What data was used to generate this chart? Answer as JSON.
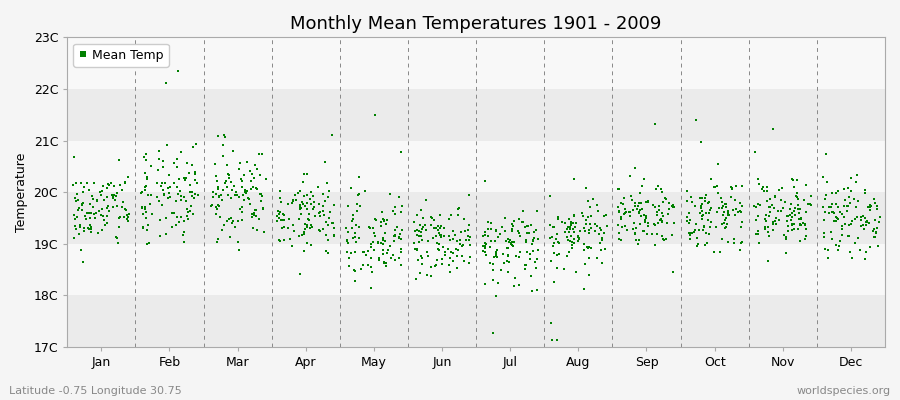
{
  "title": "Monthly Mean Temperatures 1901 - 2009",
  "ylabel": "Temperature",
  "subtitle": "Latitude -0.75 Longitude 30.75",
  "watermark": "worldspecies.org",
  "months": [
    "Jan",
    "Feb",
    "Mar",
    "Apr",
    "May",
    "Jun",
    "Jul",
    "Aug",
    "Sep",
    "Oct",
    "Nov",
    "Dec"
  ],
  "ylim": [
    17.0,
    23.0
  ],
  "yticks": [
    17,
    18,
    19,
    20,
    21,
    22,
    23
  ],
  "ytick_labels": [
    "17C",
    "18C",
    "19C",
    "20C",
    "21C",
    "22C",
    "23C"
  ],
  "n_years": 109,
  "seed": 42,
  "monthly_means": [
    19.65,
    19.95,
    20.0,
    19.55,
    19.1,
    19.05,
    18.95,
    19.15,
    19.6,
    19.55,
    19.55,
    19.55
  ],
  "monthly_stds": [
    0.38,
    0.45,
    0.42,
    0.4,
    0.38,
    0.35,
    0.38,
    0.35,
    0.33,
    0.33,
    0.35,
    0.38
  ],
  "marker_color": "#008000",
  "marker_size": 2,
  "background_color": "#f5f5f5",
  "band_colors_odd": "#ebebeb",
  "band_colors_even": "#f8f8f8",
  "title_fontsize": 13,
  "axis_label_fontsize": 9,
  "tick_fontsize": 9,
  "legend_fontsize": 9,
  "subtitle_fontsize": 8,
  "dashed_line_color": "#888888",
  "spine_color": "#aaaaaa"
}
